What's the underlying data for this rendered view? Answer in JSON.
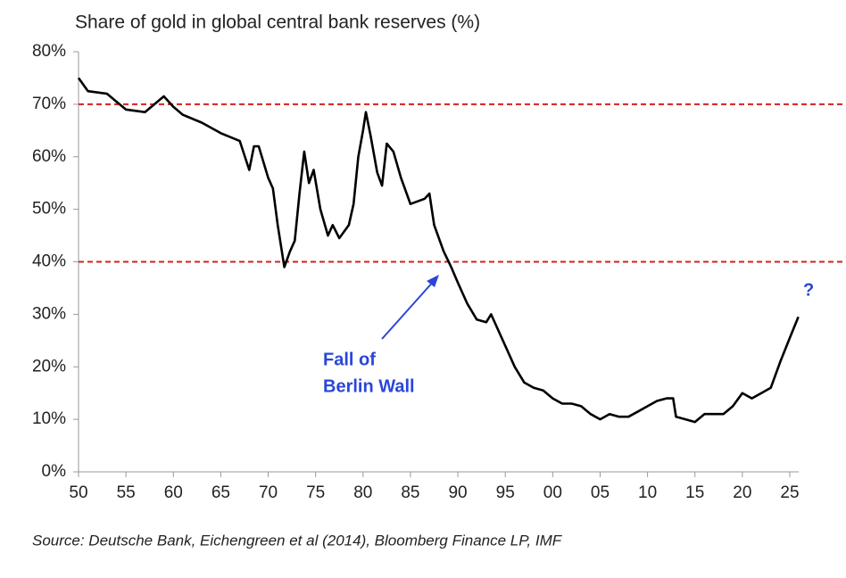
{
  "chart_data": {
    "type": "line",
    "title": "Share of gold in global central bank reserves (%)",
    "source": "Source: Deutsche Bank, Eichengreen et al (2014), Bloomberg Finance LP, IMF",
    "annotations": [
      "Fall of",
      "Berlin Wall",
      "?"
    ],
    "reference_lines": {
      "values": [
        70,
        40
      ],
      "color": "#d61f1f"
    },
    "xlim": [
      1950,
      2025
    ],
    "ylim": [
      0,
      80
    ],
    "xticks": [
      {
        "value": 1950,
        "label": "50"
      },
      {
        "value": 1955,
        "label": "55"
      },
      {
        "value": 1960,
        "label": "60"
      },
      {
        "value": 1965,
        "label": "65"
      },
      {
        "value": 1970,
        "label": "70"
      },
      {
        "value": 1975,
        "label": "75"
      },
      {
        "value": 1980,
        "label": "80"
      },
      {
        "value": 1985,
        "label": "85"
      },
      {
        "value": 1990,
        "label": "90"
      },
      {
        "value": 1995,
        "label": "95"
      },
      {
        "value": 2000,
        "label": "00"
      },
      {
        "value": 2005,
        "label": "05"
      },
      {
        "value": 2010,
        "label": "10"
      },
      {
        "value": 2015,
        "label": "15"
      },
      {
        "value": 2020,
        "label": "20"
      },
      {
        "value": 2025,
        "label": "25"
      }
    ],
    "yticks": [
      {
        "value": 0,
        "label": "0%"
      },
      {
        "value": 10,
        "label": "10%"
      },
      {
        "value": 20,
        "label": "20%"
      },
      {
        "value": 30,
        "label": "30%"
      },
      {
        "value": 40,
        "label": "40%"
      },
      {
        "value": 50,
        "label": "50%"
      },
      {
        "value": 60,
        "label": "60%"
      },
      {
        "value": 70,
        "label": "70%"
      },
      {
        "value": 80,
        "label": "80%"
      }
    ],
    "x": [
      1950,
      1951,
      1953,
      1955,
      1957,
      1958,
      1959,
      1960,
      1961,
      1963,
      1965,
      1967,
      1968,
      1968.5,
      1969,
      1970,
      1970.5,
      1971,
      1971.7,
      1972.3,
      1972.8,
      1973.3,
      1973.8,
      1974.3,
      1974.8,
      1975.5,
      1976.3,
      1976.8,
      1977.5,
      1978.5,
      1979,
      1979.5,
      1980,
      1980.3,
      1980.8,
      1981.5,
      1982,
      1982.5,
      1983.2,
      1984,
      1985,
      1986.5,
      1987,
      1987.5,
      1988.5,
      1989.3,
      1990,
      1991,
      1992,
      1993,
      1993.5,
      1994,
      1995,
      1996,
      1997,
      1998,
      1999,
      2000,
      2001,
      2002,
      2003,
      2004,
      2005,
      2006,
      2007,
      2008,
      2009,
      2010,
      2011,
      2012,
      2012.7,
      2013,
      2014,
      2015,
      2016,
      2017,
      2018,
      2019,
      2020,
      2021,
      2022,
      2023,
      2024,
      2025,
      2025.9
    ],
    "series": [
      {
        "name": "Gold share",
        "color": "#000000",
        "values": [
          75,
          72.5,
          72,
          69,
          68.5,
          70,
          71.5,
          69.5,
          68,
          66.5,
          64.5,
          63,
          57.5,
          62,
          62,
          56,
          54,
          47,
          39,
          42,
          44,
          53,
          61,
          55,
          57.5,
          50,
          45,
          47,
          44.5,
          47,
          51,
          60,
          65,
          68.5,
          64,
          57,
          54.5,
          62.5,
          61,
          56,
          51,
          52,
          53,
          47,
          42,
          39,
          36,
          32,
          29,
          28.5,
          30,
          28,
          24,
          20,
          17,
          16,
          15.5,
          14,
          13,
          13,
          12.5,
          11,
          10,
          11,
          10.5,
          10.5,
          11.5,
          12.5,
          13.5,
          14,
          14,
          10.5,
          10,
          9.5,
          11,
          11,
          11,
          12.5,
          15,
          14,
          15,
          16,
          21,
          25.5,
          29.5
        ]
      }
    ]
  }
}
